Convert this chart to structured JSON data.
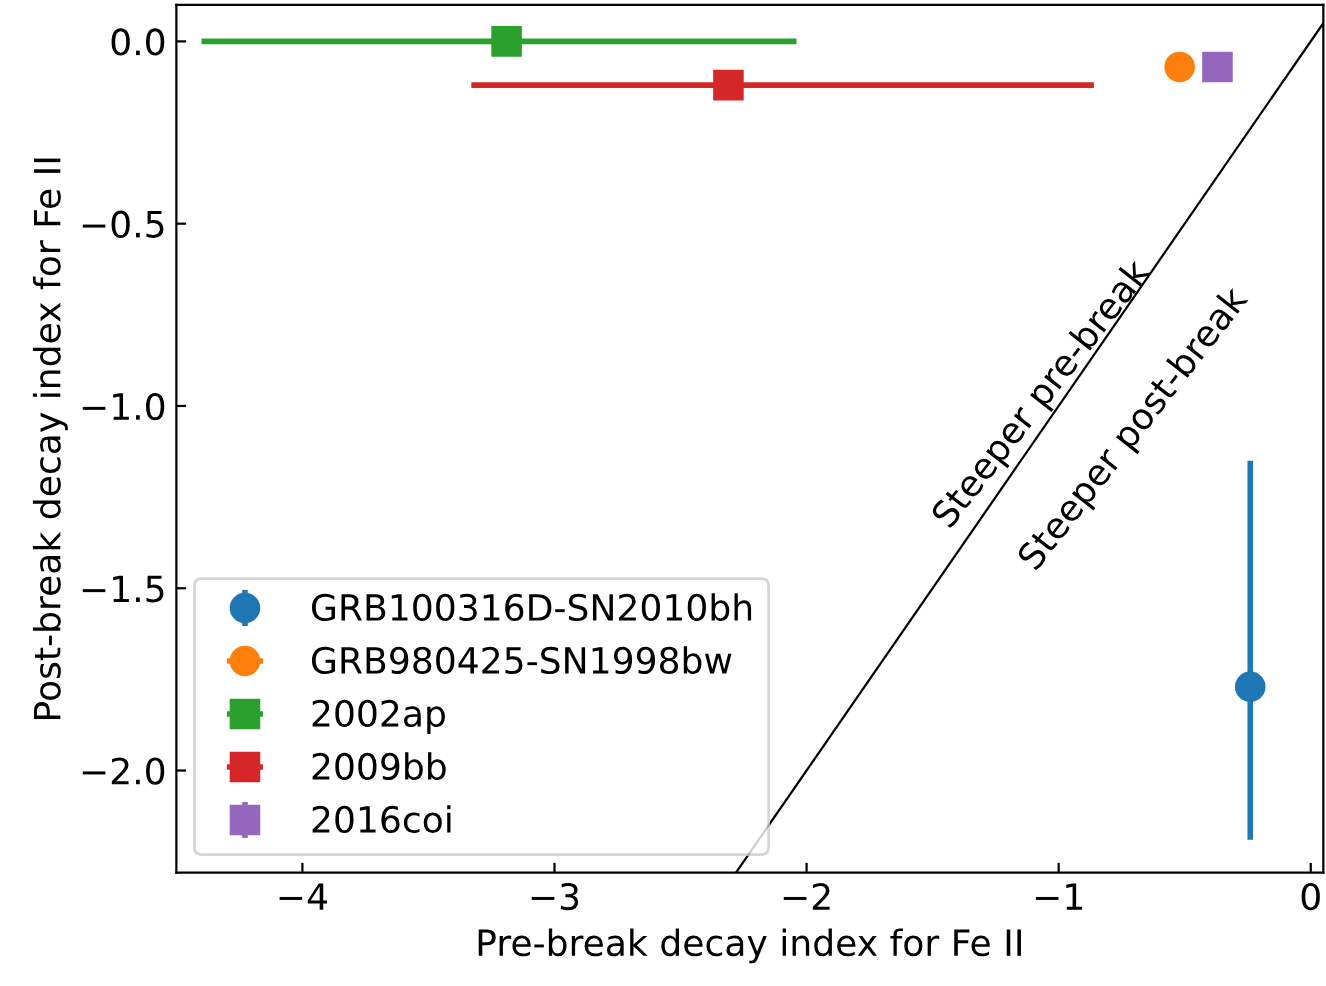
{
  "chart_data": {
    "type": "scatter",
    "xlabel": "Pre-break decay index for Fe II",
    "ylabel": "Post-break decay index for Fe II",
    "xlim": [
      -4.5,
      0.05
    ],
    "ylim": [
      -2.28,
      0.1
    ],
    "xticks": [
      {
        "value": -4,
        "label": "−4"
      },
      {
        "value": -3,
        "label": "−3"
      },
      {
        "value": -2,
        "label": "−2"
      },
      {
        "value": -1,
        "label": "−1"
      },
      0
    ],
    "yticks": [
      {
        "value": 0,
        "label": "0.0"
      },
      {
        "value": -0.5,
        "label": "−0.5"
      },
      {
        "value": -1.0,
        "label": "−1.0"
      },
      {
        "value": -1.5,
        "label": "−1.5"
      },
      {
        "value": -2.0,
        "label": "−2.0"
      }
    ],
    "grid": false,
    "legend": "bottom left",
    "annotations": [
      "Steeper pre-break",
      "Steeper post-break"
    ],
    "series": [
      {
        "type": "line",
        "color": "#000000",
        "x": [
          -2.28,
          0.05
        ],
        "values": [
          -2.28,
          0.05
        ],
        "marker": "none"
      },
      {
        "name": "GRB100316D-SN2010bh",
        "color": "#1f77b4",
        "marker": "circle",
        "x": [
          -0.24
        ],
        "values": [
          -1.77
        ],
        "errors": [
          [
            -2.19,
            -1.15
          ]
        ]
      },
      {
        "name": "GRB980425-SN1998bw",
        "color": "#ff7f0e",
        "marker": "circle",
        "x": [
          -0.52
        ],
        "values": [
          -0.07
        ],
        "xerrors": [
          0.05
        ]
      },
      {
        "name": "2002ap",
        "color": "#2ca02c",
        "marker": "square",
        "x": [
          -3.19
        ],
        "values": [
          0.0
        ],
        "xerrors": [
          [
            -4.4,
            -2.04
          ]
        ]
      },
      {
        "name": "2009bb",
        "color": "#d62728",
        "marker": "square",
        "x": [
          -2.31
        ],
        "values": [
          -0.12
        ],
        "xerrors": [
          [
            -3.33,
            -0.86
          ]
        ]
      },
      {
        "name": "2016coi",
        "color": "#9467bd",
        "marker": "square",
        "x": [
          -0.37
        ],
        "values": [
          -0.07
        ],
        "errors": [
          0.02
        ]
      }
    ]
  }
}
